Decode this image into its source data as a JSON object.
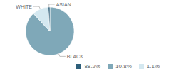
{
  "chart_data": {
    "type": "pie",
    "categories": [
      "BLACK",
      "WHITE",
      "ASIAN"
    ],
    "values": [
      88.2,
      10.8,
      1.1
    ],
    "value_labels": [
      "88.2%",
      "10.8%",
      "1.1%"
    ],
    "colors": [
      "#7fa8b8",
      "#d4e8f0",
      "#2e5f7a"
    ],
    "legend": "bottom"
  }
}
